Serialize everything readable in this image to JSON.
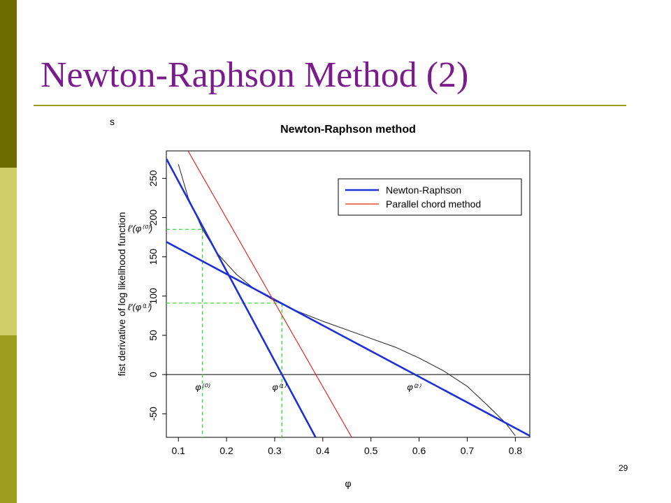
{
  "slide": {
    "title": "Newton-Raphson Method (2)",
    "stray_label": "s",
    "page_number": "29",
    "colors": {
      "title": "#7B1C8C",
      "rule": "#9C9C1E",
      "sidebar_dark": "#6B6B00",
      "sidebar_light": "#CFCF6A",
      "sidebar_mid": "#9C9C1E"
    }
  },
  "chart_data": {
    "type": "line",
    "title": "Newton-Raphson method",
    "xlabel": "φ",
    "ylabel": "fist derivative of log likelihood function",
    "xlim": [
      0.075,
      0.83
    ],
    "ylim": [
      -80,
      285
    ],
    "x_ticks": [
      0.1,
      0.2,
      0.3,
      0.4,
      0.5,
      0.6,
      0.7,
      0.8
    ],
    "x_tick_labels": [
      "0.1",
      "0.2",
      "0.3",
      "0.4",
      "0.5",
      "0.6",
      "0.7",
      "0.8"
    ],
    "y_ticks": [
      -50,
      0,
      50,
      100,
      150,
      200,
      250
    ],
    "y_tick_labels": [
      "-50",
      "0",
      "50",
      "100",
      "150",
      "200",
      "250"
    ],
    "grid": false,
    "legend_position": "top-right",
    "legend": [
      {
        "label": "Newton-Raphson",
        "color": "#1F2FD8"
      },
      {
        "label": "Parallel chord method",
        "color": "#E8281E"
      }
    ],
    "series": [
      {
        "style": "curve",
        "color": "#333333",
        "x": [
          0.1,
          0.12,
          0.15,
          0.18,
          0.22,
          0.26,
          0.3,
          0.35,
          0.4,
          0.45,
          0.5,
          0.55,
          0.6,
          0.65,
          0.7,
          0.74,
          0.78,
          0.8
        ],
        "y": [
          268,
          226,
          185,
          155,
          128,
          108,
          94,
          80,
          68,
          57,
          46,
          35,
          21,
          5,
          -15,
          -38,
          -62,
          -78
        ]
      },
      {
        "style": "tangent",
        "color": "#1F2FD8",
        "x": [
          0.075,
          0.385
        ],
        "y": [
          275,
          -80
        ]
      },
      {
        "style": "tangent",
        "color": "#1F2FD8",
        "x": [
          0.075,
          0.83
        ],
        "y": [
          169,
          -78
        ]
      },
      {
        "style": "chord",
        "color": "#E8281E",
        "x": [
          0.12,
          0.46
        ],
        "y": [
          285,
          -80
        ]
      }
    ],
    "guides": [
      {
        "x": 0.15,
        "y": 185
      },
      {
        "x": 0.315,
        "y": 91
      }
    ],
    "annotations": [
      {
        "text": "ℓ′(φ⁽⁰⁾)",
        "x": -0.005,
        "y": 182
      },
      {
        "text": "ℓ′(φ⁽¹⁾)",
        "x": -0.005,
        "y": 82
      },
      {
        "text": "φ⁽⁰⁾",
        "x": 0.135,
        "y": -20
      },
      {
        "text": "φ⁽¹⁾",
        "x": 0.295,
        "y": -20
      },
      {
        "text": "φ⁽²⁾",
        "x": 0.575,
        "y": -20
      }
    ]
  }
}
